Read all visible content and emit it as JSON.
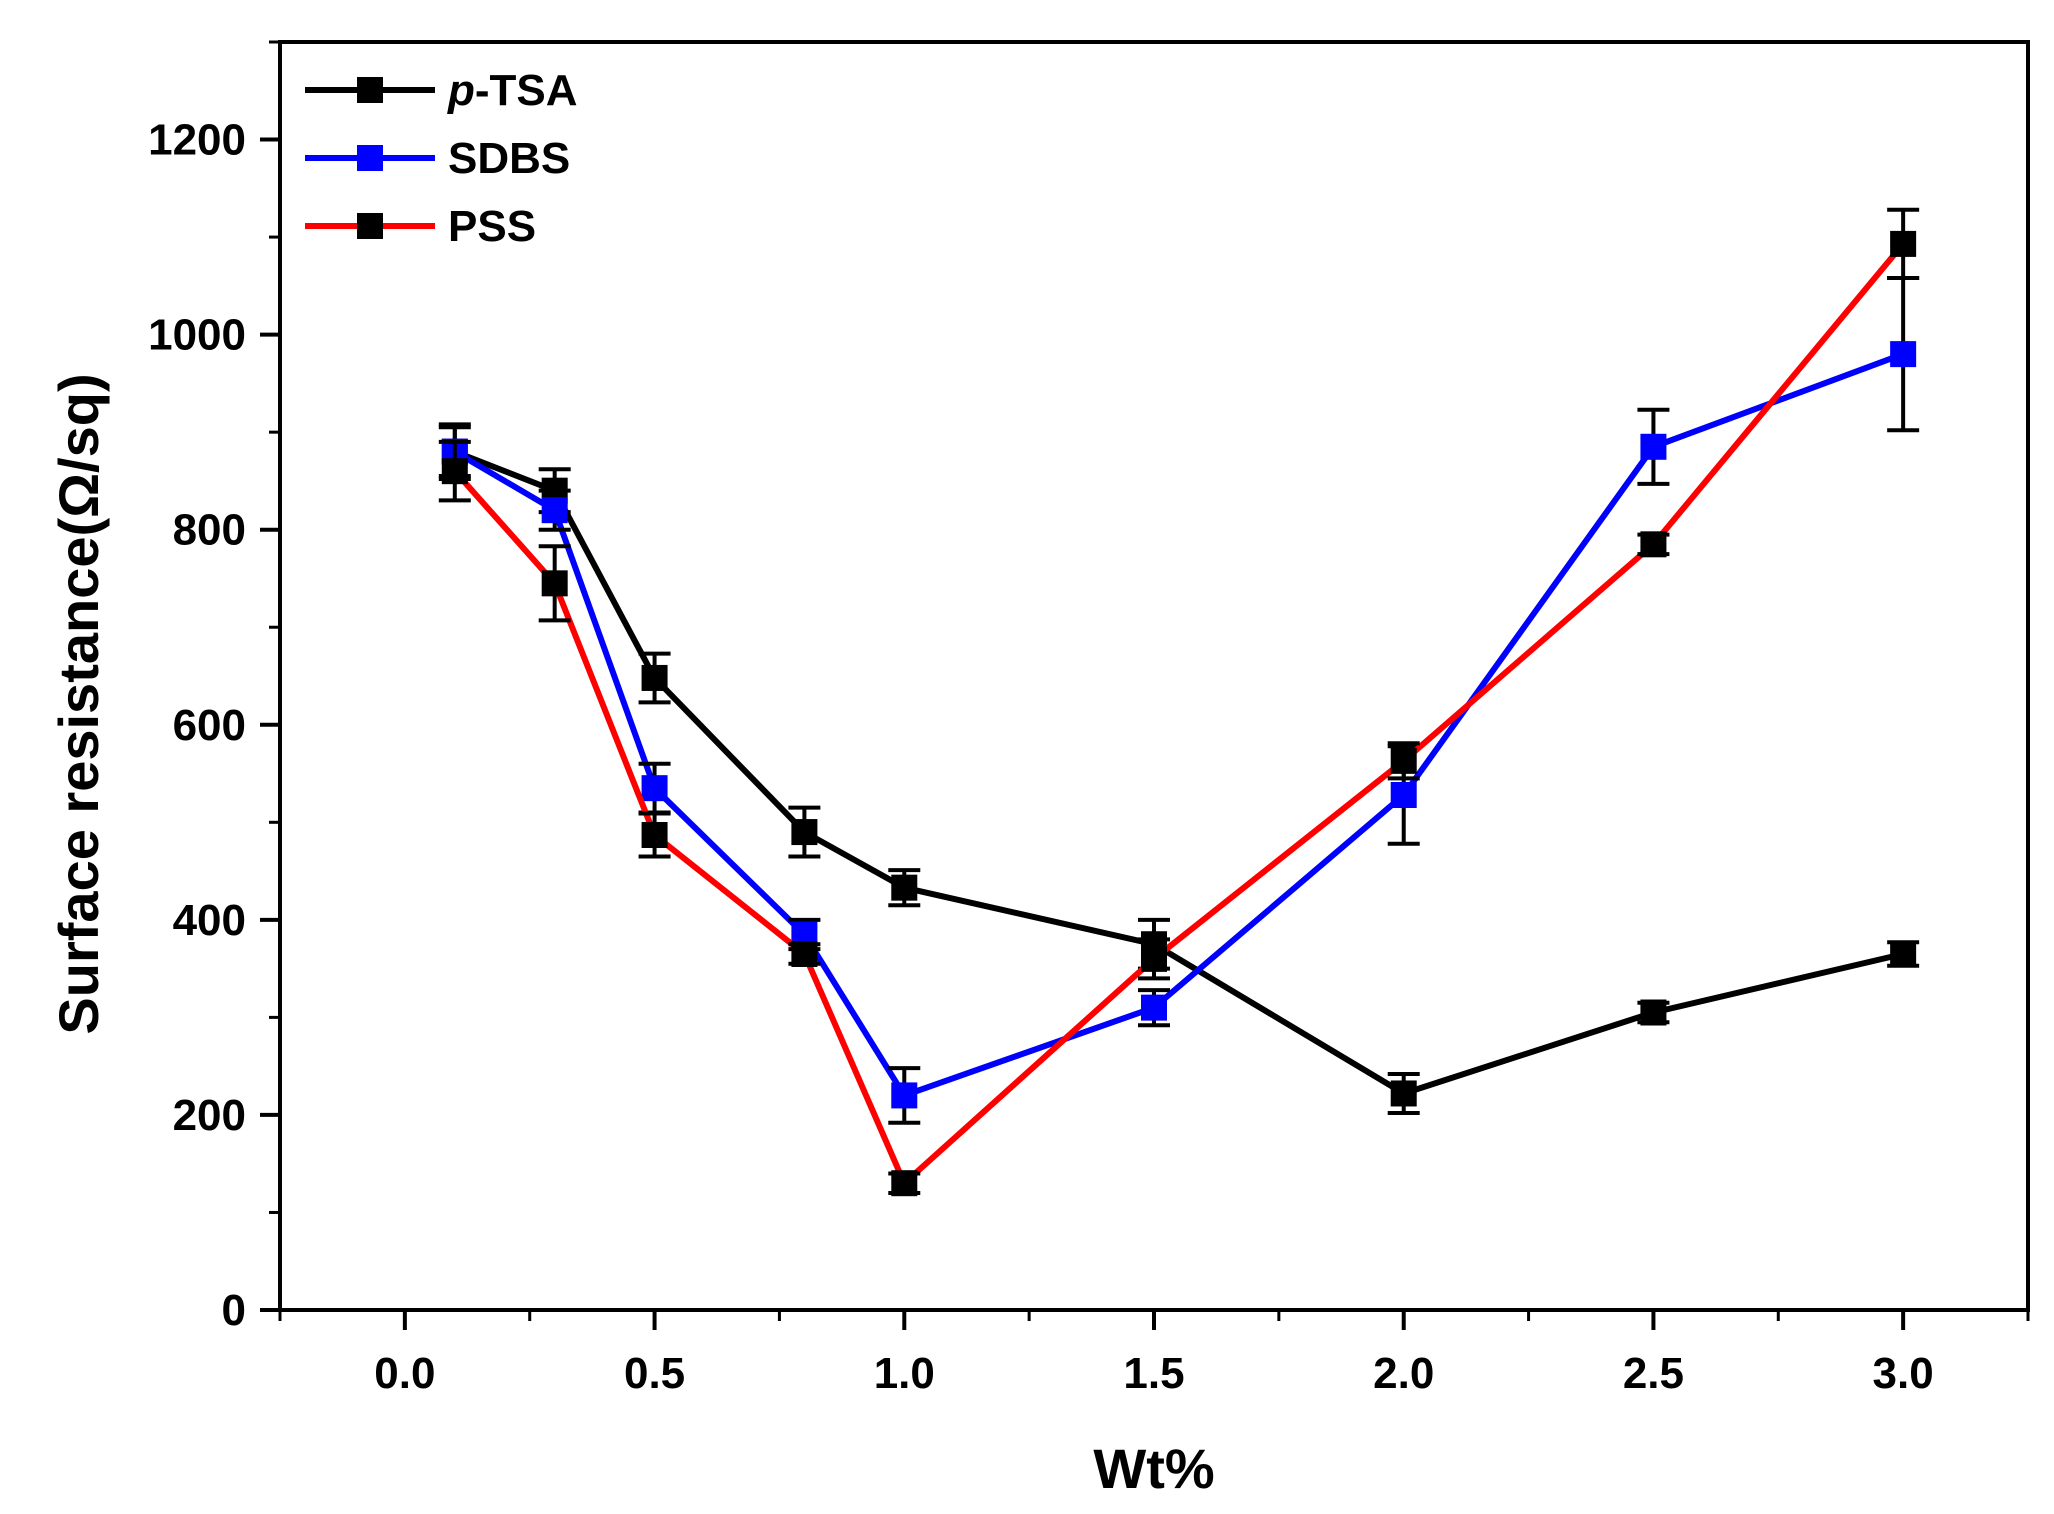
{
  "chart_data": {
    "type": "line",
    "title": "",
    "xlabel": "Wt%",
    "ylabel": "Surface resistance(Ω/sq)",
    "xlim": [
      -0.25,
      3.25
    ],
    "ylim": [
      0,
      1300
    ],
    "x_ticks": [
      0.0,
      0.5,
      1.0,
      1.5,
      2.0,
      2.5,
      3.0
    ],
    "x_tick_labels": [
      "0.0",
      "0.5",
      "1.0",
      "1.5",
      "2.0",
      "2.5",
      "3.0"
    ],
    "y_ticks": [
      0,
      200,
      400,
      600,
      800,
      1000,
      1200
    ],
    "y_tick_labels": [
      "0",
      "200",
      "400",
      "600",
      "800",
      "1000",
      "1200"
    ],
    "grid": false,
    "legend_position": "top-left",
    "series": [
      {
        "name": "p-TSA",
        "name_italic": "p",
        "name_rest": "-TSA",
        "line_color": "#000000",
        "marker_color": "#000000",
        "x": [
          0.1,
          0.3,
          0.5,
          0.8,
          1.0,
          1.5,
          2.0,
          2.5,
          3.0
        ],
        "y": [
          880,
          840,
          648,
          490,
          433,
          375,
          222,
          305,
          365
        ],
        "err": [
          28,
          22,
          25,
          25,
          18,
          25,
          20,
          10,
          12
        ]
      },
      {
        "name": "SDBS",
        "line_color": "#0000ff",
        "marker_color": "#0000ff",
        "x": [
          0.1,
          0.3,
          0.5,
          0.8,
          1.0,
          1.5,
          2.0,
          2.5,
          3.0
        ],
        "y": [
          880,
          820,
          535,
          385,
          220,
          310,
          528,
          885,
          980
        ],
        "err": [
          25,
          20,
          25,
          15,
          28,
          18,
          50,
          38,
          78
        ]
      },
      {
        "name": "PSS",
        "line_color": "#ff0000",
        "marker_color": "#000000",
        "x": [
          0.1,
          0.3,
          0.5,
          0.8,
          1.0,
          1.5,
          2.0,
          2.5,
          3.0
        ],
        "y": [
          860,
          745,
          487,
          365,
          130,
          360,
          563,
          785,
          1093
        ],
        "err": [
          30,
          38,
          22,
          10,
          10,
          20,
          18,
          10,
          35
        ]
      }
    ]
  }
}
